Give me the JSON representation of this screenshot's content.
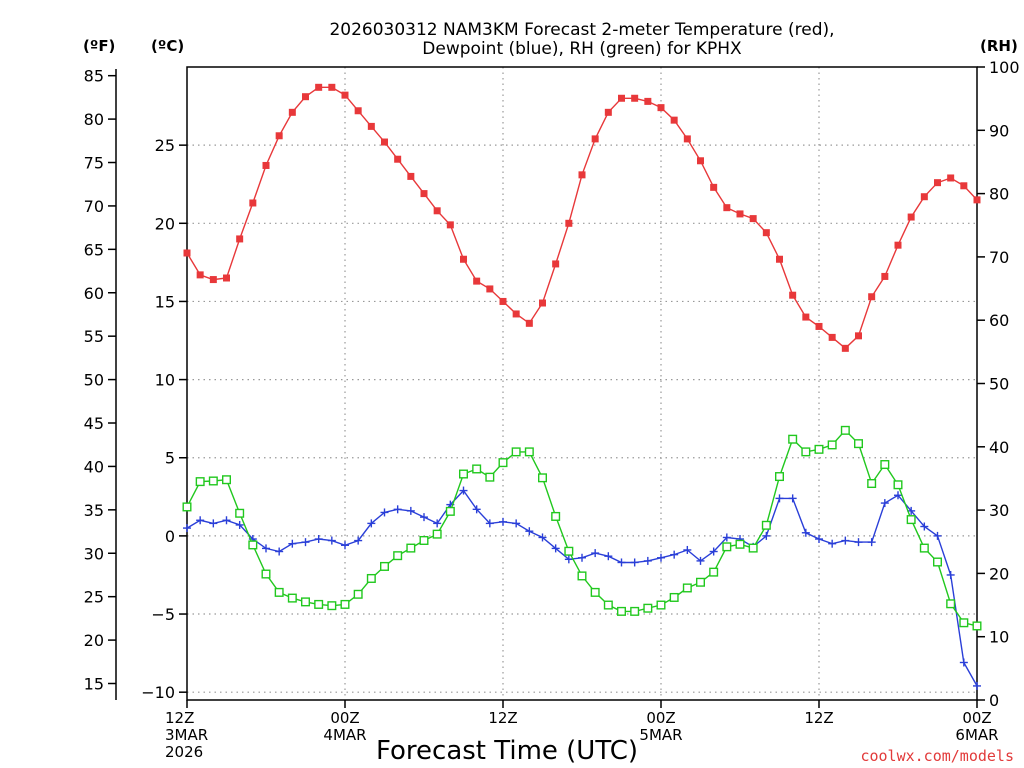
{
  "colors": {
    "temperature": "#e8383a",
    "dewpoint": "#2a3fd8",
    "rh": "#21c81e",
    "grid": "#999999",
    "credit": "#e23a3a"
  },
  "chart_data": {
    "type": "line",
    "title_line1": "2026030312 NAM3KM Forecast 2-meter Temperature (red),",
    "title_line2": "Dewpoint (blue), RH (green) for KPHX",
    "xlabel": "Forecast Time (UTC)",
    "credit": "coolwx.com/models",
    "left_unit_f": "(ºF)",
    "left_unit_c": "(ºC)",
    "right_unit": "(RH)",
    "x_hours_range": [
      0,
      60
    ],
    "x_ticks": [
      {
        "hour": 0,
        "lines": [
          "12Z",
          "3MAR",
          "2026"
        ]
      },
      {
        "hour": 12,
        "lines": [
          "00Z",
          "4MAR"
        ]
      },
      {
        "hour": 24,
        "lines": [
          "12Z"
        ]
      },
      {
        "hour": 36,
        "lines": [
          "00Z",
          "5MAR"
        ]
      },
      {
        "hour": 48,
        "lines": [
          "12Z"
        ]
      },
      {
        "hour": 60,
        "lines": [
          "00Z",
          "6MAR"
        ]
      }
    ],
    "celsius_range": [
      -10.5,
      30
    ],
    "celsius_ticks": [
      -10,
      -5,
      0,
      5,
      10,
      15,
      20,
      25
    ],
    "fahrenheit_ticks": [
      15,
      20,
      25,
      30,
      35,
      40,
      45,
      50,
      55,
      60,
      65,
      70,
      75,
      80,
      85
    ],
    "rh_range": [
      0,
      100
    ],
    "rh_ticks": [
      0,
      10,
      20,
      30,
      40,
      50,
      60,
      70,
      80,
      90,
      100
    ],
    "series": [
      {
        "name": "Temperature",
        "unit": "C",
        "marker": "square-filled",
        "values": [
          18.1,
          16.7,
          16.4,
          16.5,
          19.0,
          21.3,
          23.7,
          25.6,
          27.1,
          28.1,
          28.7,
          28.7,
          28.2,
          27.2,
          26.2,
          25.2,
          24.1,
          23.0,
          21.9,
          20.8,
          19.9,
          17.7,
          16.3,
          15.8,
          15.0,
          14.2,
          13.6,
          14.9,
          17.4,
          20.0,
          23.1,
          25.4,
          27.1,
          28.0,
          28.0,
          27.8,
          27.4,
          26.6,
          25.4,
          24.0,
          22.3,
          21.0,
          20.6,
          20.3,
          19.4,
          17.7,
          15.4,
          14.0,
          13.4,
          12.7,
          12.0,
          12.8,
          15.3,
          16.6,
          18.6,
          20.4,
          21.7,
          22.6,
          22.9,
          22.4,
          21.5
        ]
      },
      {
        "name": "Dewpoint",
        "unit": "C",
        "marker": "plus",
        "values": [
          0.5,
          1.0,
          0.8,
          1.0,
          0.7,
          -0.2,
          -0.8,
          -1.0,
          -0.5,
          -0.4,
          -0.2,
          -0.3,
          -0.6,
          -0.3,
          0.8,
          1.5,
          1.7,
          1.6,
          1.2,
          0.8,
          2.0,
          2.9,
          1.7,
          0.8,
          0.9,
          0.8,
          0.3,
          -0.1,
          -0.8,
          -1.5,
          -1.4,
          -1.1,
          -1.3,
          -1.7,
          -1.7,
          -1.6,
          -1.4,
          -1.2,
          -0.9,
          -1.6,
          -1.0,
          -0.1,
          -0.2,
          -0.7,
          0.0,
          2.4,
          2.4,
          0.2,
          -0.2,
          -0.5,
          -0.3,
          -0.4,
          -0.4,
          2.1,
          2.6,
          1.6,
          0.6,
          0.0,
          -2.5,
          -8.1,
          -9.6
        ]
      },
      {
        "name": "RH",
        "unit": "%",
        "marker": "square-open",
        "values": [
          30.5,
          34.5,
          34.6,
          34.8,
          29.5,
          24.5,
          19.9,
          17.0,
          16.1,
          15.5,
          15.1,
          14.9,
          15.1,
          16.7,
          19.2,
          21.1,
          22.8,
          24.0,
          25.2,
          26.2,
          29.8,
          35.7,
          36.5,
          35.2,
          37.5,
          39.2,
          39.2,
          35.1,
          29.0,
          23.5,
          19.6,
          17.0,
          15.0,
          14.0,
          14.0,
          14.5,
          15.0,
          16.2,
          17.7,
          18.6,
          20.2,
          24.2,
          24.6,
          24.0,
          27.6,
          35.3,
          41.2,
          39.2,
          39.6,
          40.3,
          42.6,
          40.5,
          34.2,
          37.2,
          34.0,
          28.5,
          24.0,
          21.8,
          15.2,
          12.2,
          11.7
        ]
      }
    ]
  }
}
